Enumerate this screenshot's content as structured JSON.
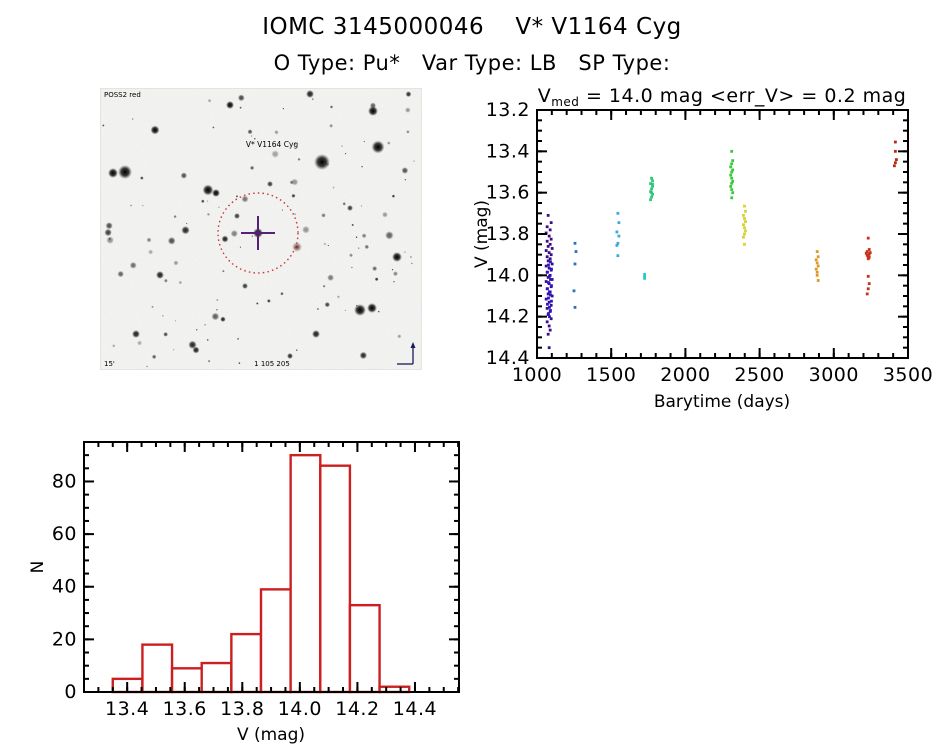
{
  "page": {
    "title": "IOMC 3145000046    V* V1164 Cyg",
    "subtitle": "O Type: Pu*   Var Type: LB   SP Type:"
  },
  "finding_chart": {
    "survey_label": "POSS2 red",
    "target_label": "V* V1164 Cyg",
    "scale_label": "15'",
    "footer_label": "1 105 205",
    "circle_color": "#cc3333",
    "crosshair_color": "#55207a",
    "annotation_color": "#1a1a5e"
  },
  "chart_data": [
    {
      "type": "scatter",
      "name": "light-curve",
      "title": {
        "prefix": "V",
        "sub": "med",
        "suffix": " = 14.0 mag <err_V> = 0.2 mag"
      },
      "xlabel": "Barytime (days)",
      "ylabel": "V (mag)",
      "xlim": [
        1000,
        3500
      ],
      "ylim": [
        13.2,
        14.4
      ],
      "y_inverted_magnitude_axis": true,
      "xticks": [
        [
          1000,
          "1000"
        ],
        [
          1500,
          "1500"
        ],
        [
          2000,
          "2000"
        ],
        [
          2500,
          "2500"
        ],
        [
          3000,
          "3000"
        ],
        [
          3500,
          "3500"
        ]
      ],
      "yticks": [
        [
          13.2,
          "13.2"
        ],
        [
          13.4,
          "13.4"
        ],
        [
          13.6,
          "13.6"
        ],
        [
          13.8,
          "13.8"
        ],
        [
          14.0,
          "14.0"
        ],
        [
          14.2,
          "14.2"
        ],
        [
          14.4,
          "14.4"
        ]
      ],
      "x_minor_step": 100,
      "y_minor_step": 0.05,
      "clusters": [
        {
          "name": "epoch-1-purple",
          "x": 1082,
          "color": "#3C0E86",
          "points": [
            [
              -1,
              13.71
            ],
            [
              2,
              13.745
            ],
            [
              -2,
              13.765
            ],
            [
              1,
              13.78
            ],
            [
              -3,
              13.795
            ],
            [
              0,
              13.81
            ],
            [
              2,
              13.825
            ],
            [
              -2,
              13.835
            ],
            [
              1,
              13.85
            ],
            [
              -1,
              13.86
            ],
            [
              3,
              13.87
            ],
            [
              -3,
              13.88
            ],
            [
              0,
              13.89
            ],
            [
              2,
              13.9
            ],
            [
              -2,
              13.91
            ],
            [
              1,
              13.92
            ],
            [
              -1,
              13.93
            ],
            [
              3,
              13.945
            ],
            [
              -3,
              13.955
            ],
            [
              0,
              13.965
            ],
            [
              2,
              13.975
            ],
            [
              -2,
              13.985
            ],
            [
              1,
              14.0
            ],
            [
              -1,
              14.01
            ],
            [
              3,
              14.02
            ],
            [
              -3,
              14.03
            ],
            [
              0,
              14.04
            ],
            [
              2,
              14.055
            ],
            [
              -2,
              14.065
            ],
            [
              1,
              14.08
            ],
            [
              -1,
              14.09
            ],
            [
              3,
              14.1
            ],
            [
              -3,
              14.115
            ],
            [
              0,
              14.13
            ],
            [
              2,
              14.145
            ],
            [
              -2,
              14.16
            ],
            [
              1,
              14.175
            ],
            [
              -1,
              14.19
            ],
            [
              2,
              14.21
            ],
            [
              -2,
              14.225
            ],
            [
              0,
              14.245
            ],
            [
              1,
              14.265
            ],
            [
              -1,
              14.285
            ],
            [
              0,
              14.35
            ]
          ]
        },
        {
          "name": "epoch-1-blue",
          "x": 1084,
          "color": "#2A17C8",
          "points": [
            [
              1,
              13.935
            ],
            [
              -1,
              13.95
            ],
            [
              2,
              13.97
            ],
            [
              -2,
              13.985
            ],
            [
              0,
              14.005
            ],
            [
              1,
              14.02
            ],
            [
              -1,
              14.035
            ],
            [
              2,
              14.05
            ],
            [
              -2,
              14.065
            ],
            [
              0,
              14.08
            ],
            [
              1,
              14.095
            ],
            [
              -1,
              14.11
            ],
            [
              2,
              14.125
            ],
            [
              -2,
              14.14
            ],
            [
              0,
              14.155
            ],
            [
              1,
              14.17
            ],
            [
              -1,
              14.185
            ],
            [
              0,
              14.2
            ]
          ]
        },
        {
          "name": "epoch-2",
          "x": 1256,
          "color": "#2E6FBF",
          "points": [
            [
              0,
              13.845
            ],
            [
              1,
              13.885
            ],
            [
              0,
              13.945
            ],
            [
              -1,
              14.075
            ],
            [
              0,
              14.155
            ]
          ]
        },
        {
          "name": "epoch-3",
          "x": 1545,
          "color": "#3FA8D8",
          "points": [
            [
              0,
              13.7
            ],
            [
              1,
              13.745
            ],
            [
              -1,
              13.79
            ],
            [
              1,
              13.81
            ],
            [
              0,
              13.845
            ],
            [
              -1,
              13.855
            ],
            [
              0,
              13.905
            ]
          ]
        },
        {
          "name": "epoch-4",
          "x": 1725,
          "color": "#2FC8C8",
          "points": [
            [
              0,
              13.995
            ],
            [
              0,
              14.005
            ],
            [
              0,
              14.015
            ]
          ]
        },
        {
          "name": "epoch-5",
          "x": 1772,
          "color": "#2EC878",
          "points": [
            [
              0,
              13.53
            ],
            [
              1,
              13.543
            ],
            [
              -1,
              13.556
            ],
            [
              1,
              13.569
            ],
            [
              0,
              13.582
            ],
            [
              -1,
              13.595
            ],
            [
              1,
              13.608
            ],
            [
              0,
              13.621
            ],
            [
              -1,
              13.634
            ],
            [
              1,
              13.56
            ],
            [
              0,
              13.6
            ]
          ]
        },
        {
          "name": "epoch-6",
          "x": 2312,
          "color": "#3CC83C",
          "points": [
            [
              0,
              13.4
            ],
            [
              1,
              13.445
            ],
            [
              0,
              13.46
            ],
            [
              -1,
              13.475
            ],
            [
              1,
              13.49
            ],
            [
              0,
              13.5
            ],
            [
              -1,
              13.515
            ],
            [
              0,
              13.53
            ],
            [
              1,
              13.545
            ],
            [
              0,
              13.555
            ],
            [
              -1,
              13.57
            ],
            [
              0,
              13.585
            ],
            [
              1,
              13.6
            ],
            [
              0,
              13.625
            ]
          ]
        },
        {
          "name": "epoch-7",
          "x": 2398,
          "color": "#D8D22E",
          "points": [
            [
              0,
              13.665
            ],
            [
              1,
              13.69
            ],
            [
              -1,
              13.71
            ],
            [
              0,
              13.725
            ],
            [
              1,
              13.74
            ],
            [
              -1,
              13.755
            ],
            [
              0,
              13.77
            ],
            [
              1,
              13.785
            ],
            [
              0,
              13.8
            ],
            [
              -1,
              13.815
            ],
            [
              0,
              13.85
            ]
          ]
        },
        {
          "name": "epoch-8",
          "x": 2888,
          "color": "#DC9A28",
          "points": [
            [
              0,
              13.885
            ],
            [
              1,
              13.91
            ],
            [
              -1,
              13.925
            ],
            [
              0,
              13.94
            ],
            [
              1,
              13.955
            ],
            [
              -1,
              13.97
            ],
            [
              0,
              13.985
            ],
            [
              0,
              14.0
            ],
            [
              1,
              14.025
            ]
          ]
        },
        {
          "name": "epoch-9",
          "x": 3232,
          "color": "#C83219",
          "points": [
            [
              0,
              13.82
            ],
            [
              1,
              13.875
            ],
            [
              -1,
              13.885
            ],
            [
              2,
              13.89
            ],
            [
              -2,
              13.893
            ],
            [
              1,
              13.898
            ],
            [
              -1,
              13.903
            ],
            [
              0,
              13.908
            ],
            [
              1,
              13.913
            ],
            [
              0,
              13.92
            ],
            [
              0,
              14.005
            ],
            [
              1,
              14.04
            ],
            [
              0,
              14.065
            ],
            [
              -1,
              14.09
            ]
          ]
        },
        {
          "name": "epoch-10",
          "x": 3415,
          "color": "#B42814",
          "points": [
            [
              0,
              13.355
            ],
            [
              0,
              13.4
            ],
            [
              1,
              13.44
            ],
            [
              0,
              13.455
            ],
            [
              -1,
              13.47
            ]
          ]
        }
      ]
    },
    {
      "type": "histogram",
      "name": "v-magnitude-distribution",
      "xlabel": "V (mag)",
      "ylabel": "N",
      "bin_start": 13.35,
      "bin_width": 0.103,
      "counts": [
        5,
        18,
        9,
        11,
        22,
        39,
        90,
        86,
        33,
        2
      ],
      "bar_color": "#CC2020",
      "xlim": [
        13.25,
        14.553
      ],
      "ylim": [
        0,
        95
      ],
      "xticks": [
        [
          13.4,
          "13.4"
        ],
        [
          13.6,
          "13.6"
        ],
        [
          13.8,
          "13.8"
        ],
        [
          14.0,
          "14.0"
        ],
        [
          14.2,
          "14.2"
        ],
        [
          14.4,
          "14.4"
        ]
      ],
      "yticks": [
        [
          0,
          "0"
        ],
        [
          20,
          "20"
        ],
        [
          40,
          "40"
        ],
        [
          60,
          "60"
        ],
        [
          80,
          "80"
        ]
      ],
      "x_minor_step": 0.05,
      "y_minor_step": 5
    }
  ]
}
